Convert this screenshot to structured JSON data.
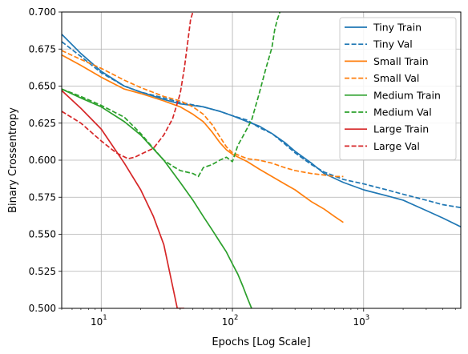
{
  "chart_data": {
    "type": "line",
    "title": "",
    "xlabel": "Epochs [Log Scale]",
    "ylabel": "Binary Crossentropy",
    "xscale": "log",
    "xlim": [
      5,
      5500
    ],
    "ylim": [
      0.5,
      0.7
    ],
    "grid": true,
    "legend_position": "top-right",
    "x_major_ticks": [
      {
        "value": 10,
        "base": "10",
        "exp": "1"
      },
      {
        "value": 100,
        "base": "10",
        "exp": "2"
      },
      {
        "value": 1000,
        "base": "10",
        "exp": "3"
      }
    ],
    "y_ticks": [
      {
        "value": 0.5,
        "label": "0.500"
      },
      {
        "value": 0.525,
        "label": "0.525"
      },
      {
        "value": 0.55,
        "label": "0.550"
      },
      {
        "value": 0.575,
        "label": "0.575"
      },
      {
        "value": 0.6,
        "label": "0.600"
      },
      {
        "value": 0.625,
        "label": "0.625"
      },
      {
        "value": 0.65,
        "label": "0.650"
      },
      {
        "value": 0.675,
        "label": "0.675"
      },
      {
        "value": 0.7,
        "label": "0.700"
      }
    ],
    "series": [
      {
        "name": "Tiny Train",
        "color": "#1f77b4",
        "style": "solid",
        "x": [
          5,
          7,
          10,
          15,
          20,
          30,
          40,
          60,
          80,
          100,
          130,
          160,
          200,
          250,
          300,
          400,
          500,
          700,
          1000,
          1500,
          2000,
          3000,
          4000,
          5500
        ],
        "y": [
          0.685,
          0.672,
          0.66,
          0.65,
          0.646,
          0.641,
          0.638,
          0.636,
          0.633,
          0.63,
          0.626,
          0.623,
          0.618,
          0.612,
          0.606,
          0.598,
          0.591,
          0.585,
          0.58,
          0.576,
          0.573,
          0.566,
          0.561,
          0.555
        ]
      },
      {
        "name": "Tiny Val",
        "color": "#1f77b4",
        "style": "dashed",
        "x": [
          5,
          7,
          10,
          15,
          20,
          30,
          40,
          60,
          80,
          100,
          130,
          160,
          200,
          250,
          300,
          400,
          500,
          700,
          1000,
          1500,
          2000,
          3000,
          4000,
          5500
        ],
        "y": [
          0.68,
          0.67,
          0.659,
          0.65,
          0.646,
          0.642,
          0.639,
          0.636,
          0.633,
          0.63,
          0.627,
          0.622,
          0.618,
          0.611,
          0.605,
          0.597,
          0.592,
          0.587,
          0.584,
          0.58,
          0.577,
          0.573,
          0.57,
          0.568
        ]
      },
      {
        "name": "Small Train",
        "color": "#ff7f0e",
        "style": "solid",
        "x": [
          5,
          7,
          10,
          15,
          20,
          30,
          40,
          50,
          60,
          70,
          80,
          90,
          100,
          130,
          160,
          200,
          250,
          300,
          400,
          500,
          600,
          700
        ],
        "y": [
          0.671,
          0.664,
          0.656,
          0.648,
          0.645,
          0.64,
          0.636,
          0.631,
          0.626,
          0.619,
          0.612,
          0.607,
          0.604,
          0.599,
          0.594,
          0.589,
          0.584,
          0.58,
          0.572,
          0.567,
          0.562,
          0.558
        ]
      },
      {
        "name": "Small Val",
        "color": "#ff7f0e",
        "style": "dashed",
        "x": [
          5,
          7,
          10,
          15,
          20,
          30,
          40,
          50,
          60,
          70,
          80,
          90,
          100,
          130,
          160,
          200,
          250,
          300,
          400,
          500,
          600,
          700
        ],
        "y": [
          0.674,
          0.668,
          0.662,
          0.654,
          0.649,
          0.643,
          0.64,
          0.636,
          0.631,
          0.624,
          0.616,
          0.609,
          0.605,
          0.601,
          0.6,
          0.598,
          0.595,
          0.593,
          0.591,
          0.59,
          0.589,
          0.589
        ]
      },
      {
        "name": "Medium Train",
        "color": "#2ca02c",
        "style": "solid",
        "x": [
          5,
          7,
          10,
          15,
          20,
          30,
          40,
          50,
          60,
          70,
          80,
          90,
          100,
          110,
          120,
          130,
          140
        ],
        "y": [
          0.648,
          0.642,
          0.636,
          0.626,
          0.617,
          0.6,
          0.585,
          0.573,
          0.562,
          0.553,
          0.545,
          0.538,
          0.53,
          0.523,
          0.515,
          0.507,
          0.5
        ]
      },
      {
        "name": "Medium Val",
        "color": "#2ca02c",
        "style": "dashed",
        "x": [
          5,
          7,
          10,
          15,
          20,
          25,
          30,
          35,
          40,
          50,
          55,
          60,
          70,
          80,
          90,
          100,
          110,
          120,
          140,
          160,
          180,
          200,
          210,
          220,
          230
        ],
        "y": [
          0.648,
          0.643,
          0.637,
          0.629,
          0.618,
          0.608,
          0.6,
          0.596,
          0.593,
          0.591,
          0.589,
          0.595,
          0.597,
          0.6,
          0.602,
          0.599,
          0.61,
          0.616,
          0.627,
          0.645,
          0.662,
          0.676,
          0.688,
          0.695,
          0.7
        ]
      },
      {
        "name": "Large Train",
        "color": "#d62728",
        "style": "solid",
        "x": [
          5,
          7,
          10,
          15,
          20,
          25,
          30,
          35,
          38,
          40,
          42,
          43
        ],
        "y": [
          0.647,
          0.635,
          0.621,
          0.598,
          0.58,
          0.562,
          0.543,
          0.515,
          0.5,
          0.5,
          0.5,
          0.5
        ]
      },
      {
        "name": "Large Val",
        "color": "#d62728",
        "style": "dashed",
        "x": [
          5,
          7,
          10,
          13,
          16,
          18,
          20,
          25,
          30,
          35,
          40,
          43,
          46,
          48,
          50
        ],
        "y": [
          0.633,
          0.625,
          0.613,
          0.605,
          0.601,
          0.602,
          0.604,
          0.608,
          0.617,
          0.628,
          0.645,
          0.662,
          0.682,
          0.695,
          0.7
        ]
      }
    ]
  }
}
